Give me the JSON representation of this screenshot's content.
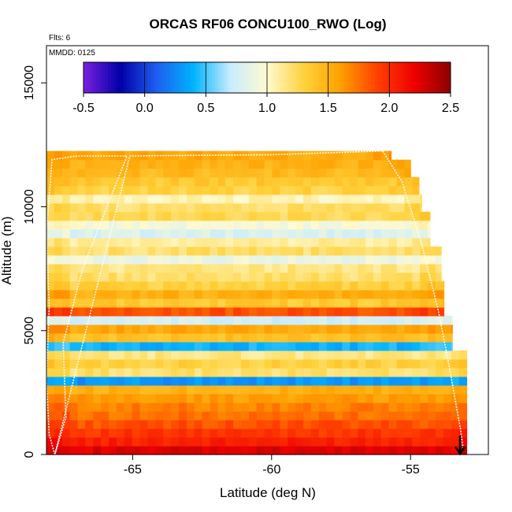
{
  "chart_data": {
    "type": "heatmap",
    "title": "ORCAS RF06 CONCU100_RWO (Log)",
    "xlabel": "Latitude (deg N)",
    "ylabel": "Altitude (m)",
    "xlim": [
      -68.1,
      -52.2
    ],
    "ylim": [
      0,
      16500
    ],
    "x_ticks": [
      -65,
      -60,
      -55
    ],
    "x_tick_labels": [
      "-65",
      "-60",
      "-55"
    ],
    "y_ticks": [
      0,
      5000,
      10000,
      15000
    ],
    "y_tick_labels": [
      "0",
      "5000",
      "10000",
      "15000"
    ],
    "annotations": {
      "flights": "Flts: 6",
      "date": "MMDD: 0125"
    },
    "colorbar": {
      "range": [
        -0.5,
        2.5
      ],
      "ticks": [
        -0.5,
        0.0,
        0.5,
        1.0,
        1.5,
        2.0,
        2.5
      ],
      "tick_labels": [
        "-0.5",
        "0.0",
        "0.5",
        "1.0",
        "1.5",
        "2.0",
        "2.5"
      ],
      "colors": [
        "#7a1fe0",
        "#0000a8",
        "#1e5ef0",
        "#00b4ff",
        "#c8ecff",
        "#fffad0",
        "#ffd23c",
        "#ffa000",
        "#ff4000",
        "#f00000",
        "#8c0000"
      ]
    },
    "cell_height_m": 350,
    "columns": 54,
    "x_start": -68.1,
    "x_step": 0.28,
    "rows": [
      {
        "alt": 0,
        "value": 2.25
      },
      {
        "alt": 350,
        "value": 2.05
      },
      {
        "alt": 700,
        "value": 1.95
      },
      {
        "alt": 1050,
        "value": 1.85
      },
      {
        "alt": 1400,
        "value": 1.75
      },
      {
        "alt": 1750,
        "value": 1.7
      },
      {
        "alt": 2100,
        "value": 1.6
      },
      {
        "alt": 2450,
        "value": 1.5
      },
      {
        "alt": 2800,
        "value": 0.3
      },
      {
        "alt": 3150,
        "value": 1.2
      },
      {
        "alt": 3500,
        "value": 1.3
      },
      {
        "alt": 3850,
        "value": 1.15
      },
      {
        "alt": 4200,
        "value": 0.4
      },
      {
        "alt": 4550,
        "value": 1.4
      },
      {
        "alt": 4900,
        "value": 1.55
      },
      {
        "alt": 5250,
        "value": 0.75
      },
      {
        "alt": 5600,
        "value": 1.85
      },
      {
        "alt": 5950,
        "value": 1.35
      },
      {
        "alt": 6300,
        "value": 1.5
      },
      {
        "alt": 6650,
        "value": 1.3
      },
      {
        "alt": 7000,
        "value": 1.2
      },
      {
        "alt": 7350,
        "value": 1.15
      },
      {
        "alt": 7700,
        "value": 0.9
      },
      {
        "alt": 8050,
        "value": 1.2
      },
      {
        "alt": 8400,
        "value": 1.1
      },
      {
        "alt": 8750,
        "value": 0.8
      },
      {
        "alt": 9100,
        "value": 0.95
      },
      {
        "alt": 9450,
        "value": 1.25
      },
      {
        "alt": 9800,
        "value": 1.2
      },
      {
        "alt": 10150,
        "value": 1.05
      },
      {
        "alt": 10500,
        "value": 1.3
      },
      {
        "alt": 10850,
        "value": 1.35
      },
      {
        "alt": 11200,
        "value": 1.45
      },
      {
        "alt": 11550,
        "value": 1.5
      },
      {
        "alt": 11900,
        "value": 1.55
      }
    ],
    "envelope": [
      {
        "alt": 11900,
        "x_max": -55.7
      },
      {
        "alt": 11200,
        "x_max": -55.0
      },
      {
        "alt": 10500,
        "x_max": -54.7
      },
      {
        "alt": 9800,
        "x_max": -54.6
      },
      {
        "alt": 8400,
        "x_max": -54.3
      },
      {
        "alt": 7000,
        "x_max": -53.9
      },
      {
        "alt": 5600,
        "x_max": -53.8
      },
      {
        "alt": 4200,
        "x_max": -53.5
      },
      {
        "alt": 2800,
        "x_max": -52.9
      },
      {
        "alt": 1400,
        "x_max": -52.9
      },
      {
        "alt": 700,
        "x_max": -52.9
      },
      {
        "alt": 350,
        "x_max": -52.6
      }
    ],
    "flight_track": [
      {
        "lat": -67.8,
        "alt": 0
      },
      {
        "lat": -68.0,
        "alt": 800
      },
      {
        "lat": -68.1,
        "alt": 3000
      },
      {
        "lat": -68.0,
        "alt": 6000
      },
      {
        "lat": -68.1,
        "alt": 9000
      },
      {
        "lat": -67.9,
        "alt": 11900
      },
      {
        "lat": -67.0,
        "alt": 12050
      },
      {
        "lat": -65.2,
        "alt": 12050
      },
      {
        "lat": -66.8,
        "alt": 7500
      },
      {
        "lat": -67.5,
        "alt": 4500
      },
      {
        "lat": -67.4,
        "alt": 1500
      },
      {
        "lat": -67.8,
        "alt": 0
      },
      {
        "lat": -65.1,
        "alt": 12050
      },
      {
        "lat": -60.0,
        "alt": 12100
      },
      {
        "lat": -56.0,
        "alt": 12250
      },
      {
        "lat": -55.3,
        "alt": 11000
      },
      {
        "lat": -54.6,
        "alt": 8500
      },
      {
        "lat": -54.0,
        "alt": 5800
      },
      {
        "lat": -53.6,
        "alt": 3500
      },
      {
        "lat": -53.2,
        "alt": 1000
      },
      {
        "lat": -53.1,
        "alt": 200
      }
    ]
  }
}
